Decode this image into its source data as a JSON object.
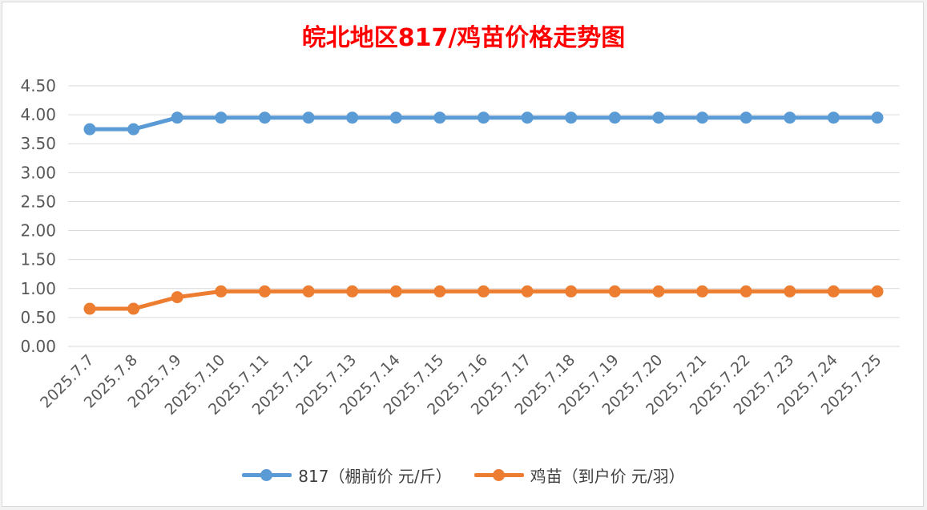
{
  "chart_data": {
    "type": "line",
    "title": "皖北地区817/鸡苗价格走势图",
    "categories": [
      "2025.7.7",
      "2025.7.8",
      "2025.7.9",
      "2025.7.10",
      "2025.7.11",
      "2025.7.12",
      "2025.7.13",
      "2025.7.14",
      "2025.7.15",
      "2025.7.16",
      "2025.7.17",
      "2025.7.18",
      "2025.7.19",
      "2025.7.20",
      "2025.7.21",
      "2025.7.22",
      "2025.7.23",
      "2025.7.24",
      "2025.7.25"
    ],
    "y_ticks": [
      "0.00",
      "0.50",
      "1.00",
      "1.50",
      "2.00",
      "2.50",
      "3.00",
      "3.50",
      "4.00",
      "4.50"
    ],
    "ylim": [
      0,
      4.5
    ],
    "grid": true,
    "legend_position": "bottom",
    "series": [
      {
        "name": "817（棚前价 元/斤）",
        "color": "#5b9bd5",
        "values": [
          3.75,
          3.75,
          3.95,
          3.95,
          3.95,
          3.95,
          3.95,
          3.95,
          3.95,
          3.95,
          3.95,
          3.95,
          3.95,
          3.95,
          3.95,
          3.95,
          3.95,
          3.95,
          3.95
        ]
      },
      {
        "name": "鸡苗（到户价 元/羽）",
        "color": "#ed7d31",
        "values": [
          0.65,
          0.65,
          0.85,
          0.95,
          0.95,
          0.95,
          0.95,
          0.95,
          0.95,
          0.95,
          0.95,
          0.95,
          0.95,
          0.95,
          0.95,
          0.95,
          0.95,
          0.95,
          0.95
        ]
      }
    ]
  }
}
